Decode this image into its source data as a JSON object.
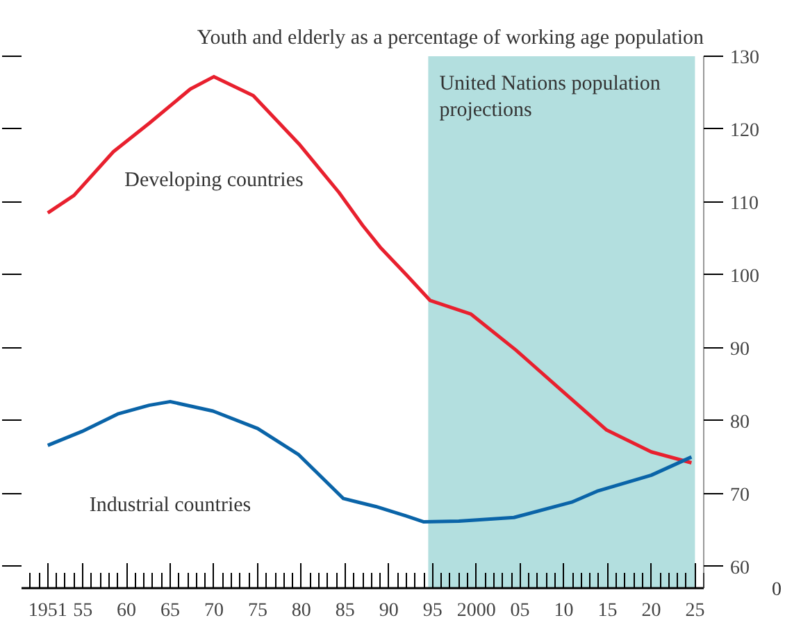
{
  "chart_data": {
    "type": "line",
    "title": "Youth and elderly as a percentage of working age population",
    "series": [
      {
        "name": "Developing countries",
        "color": "#e8202e",
        "x": [
          1951,
          1954,
          1958.5,
          1962.6,
          1967.3,
          1970,
          1974.5,
          1979.7,
          1984.3,
          1987,
          1989,
          1992,
          1994.7,
          1999.4,
          2004.5,
          2009.6,
          2014.9,
          2020,
          2024.6
        ],
        "values": [
          108.5,
          110.9,
          116.9,
          120.8,
          125.5,
          127.2,
          124.6,
          118,
          111.3,
          106.8,
          103.8,
          100,
          96.5,
          94.6,
          89.7,
          84.3,
          78.7,
          75.7,
          74.2
        ]
      },
      {
        "name": "Industrial countries",
        "color": "#0a64a8",
        "x": [
          1951,
          1954.9,
          1959,
          1962.6,
          1965,
          1969.9,
          1975,
          1979.7,
          1984.8,
          1988.5,
          1992,
          1994,
          1998,
          2004.3,
          2010.9,
          2013.8,
          2020,
          2024.6
        ],
        "values": [
          76.6,
          78.5,
          80.9,
          82.1,
          82.6,
          81.3,
          78.9,
          75.3,
          69.3,
          68.2,
          66.9,
          66.1,
          66.2,
          66.7,
          68.8,
          70.3,
          72.5,
          75.0
        ]
      }
    ],
    "xlim": [
      1948,
      2026
    ],
    "xticks": [
      {
        "value": 1951,
        "label": "1951"
      },
      {
        "value": 1955,
        "label": "55"
      },
      {
        "value": 1960,
        "label": "60"
      },
      {
        "value": 1965,
        "label": "65"
      },
      {
        "value": 1970,
        "label": "70"
      },
      {
        "value": 1975,
        "label": "75"
      },
      {
        "value": 1980,
        "label": "80"
      },
      {
        "value": 1985,
        "label": "85"
      },
      {
        "value": 1990,
        "label": "90"
      },
      {
        "value": 1995,
        "label": "95"
      },
      {
        "value": 2000,
        "label": "2000"
      },
      {
        "value": 2005,
        "label": "05"
      },
      {
        "value": 2010,
        "label": "10"
      },
      {
        "value": 2015,
        "label": "15"
      },
      {
        "value": 2020,
        "label": "20"
      },
      {
        "value": 2025,
        "label": "25"
      }
    ],
    "ylim": [
      57,
      130
    ],
    "yticks": [
      60,
      70,
      80,
      90,
      100,
      110,
      120,
      130
    ],
    "annotations": [
      "0"
    ],
    "bands": [
      {
        "axis": "x",
        "from": 1994.5,
        "to": 2025,
        "label": "United Nations population\nprojections",
        "color": "#b3dfdf"
      }
    ],
    "grid": false
  }
}
